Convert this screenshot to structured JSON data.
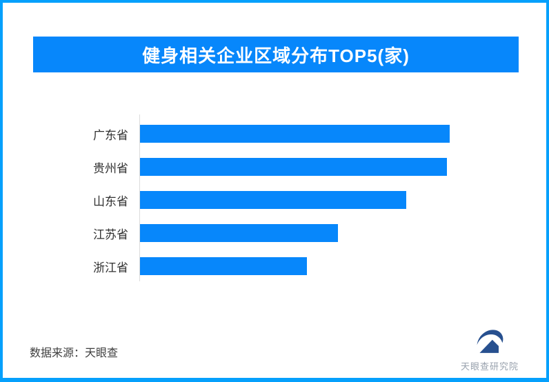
{
  "frame": {
    "border_color": "#05a0fc"
  },
  "header": {
    "title": "健身相关企业区域分布TOP5(家)",
    "bg_color": "#0787fb",
    "text_color": "#ffffff"
  },
  "chart_data": {
    "type": "bar",
    "orientation": "horizontal",
    "title": "健身相关企业区域分布TOP5(家)",
    "categories": [
      "广东省",
      "贵州省",
      "山东省",
      "江苏省",
      "浙江省"
    ],
    "values": [
      100,
      99,
      86,
      64,
      54
    ],
    "value_labels_shown": false,
    "xlabel": "",
    "ylabel": "",
    "xlim": [
      0,
      100
    ],
    "grid": false,
    "legend": false,
    "bar_color": "#0787fb",
    "axis_line_color": "#dcdcdc"
  },
  "footer": {
    "source_label": "数据来源：天眼查",
    "logo_text": "天眼查研究院",
    "logo_color": "#27508f",
    "logo_text_color": "#98a1ad"
  }
}
